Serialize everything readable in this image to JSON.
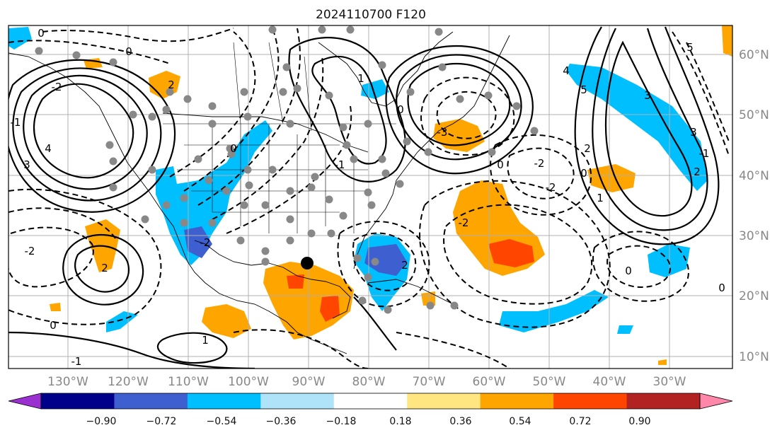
{
  "title": "2024110700 F120",
  "map": {
    "lon_labels": [
      "130°W",
      "120°W",
      "110°W",
      "100°W",
      "90°W",
      "80°W",
      "70°W",
      "60°W",
      "50°W",
      "40°W",
      "30°W"
    ],
    "lat_labels": [
      "60°N",
      "50°N",
      "40°N",
      "30°N",
      "20°N",
      "10°N"
    ],
    "contour_labels": [
      "0",
      "0",
      "-2",
      "2",
      "4",
      "3",
      "0",
      "-1",
      "1",
      "0",
      "-2",
      "2",
      "0",
      "1",
      "-2",
      "-1",
      "2",
      "5",
      "4",
      "3",
      "5",
      "3",
      "0",
      "1",
      "2",
      "2",
      "-2",
      "-2",
      "-1",
      "0",
      "-3",
      "-1",
      "-2",
      "0",
      "0"
    ]
  },
  "colorbar": {
    "tick_labels": [
      "−0.90",
      "−0.72",
      "−0.54",
      "−0.36",
      "−0.18",
      "0.18",
      "0.36",
      "0.54",
      "0.72",
      "0.90"
    ],
    "colors": [
      "#9b30d0",
      "#00008b",
      "#3d5fcf",
      "#00bfff",
      "#aee3fa",
      "#ffffff",
      "#ffe680",
      "#ffa500",
      "#ff4500",
      "#b22222",
      "#ff88aa"
    ]
  },
  "colors": {
    "negative_shade": "#00bfff",
    "negative_strong": "#3d5fcf",
    "positive_shade": "#ffa500",
    "positive_strong": "#ff4500",
    "stations": "#888888"
  }
}
